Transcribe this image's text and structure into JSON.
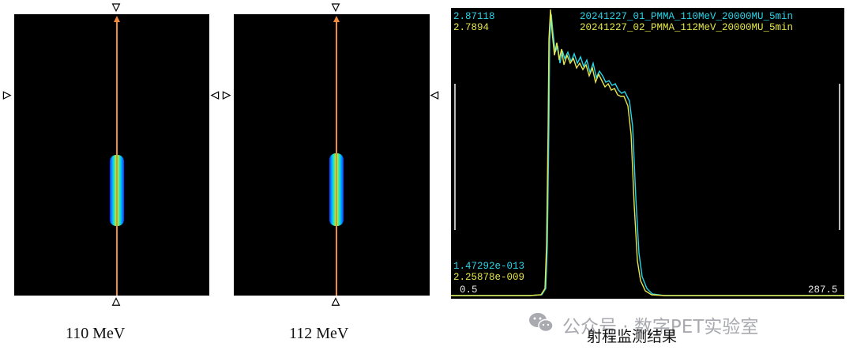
{
  "images": [
    {
      "caption": "110 MeV"
    },
    {
      "caption": "112 MeV"
    }
  ],
  "plot": {
    "top_value_1": "2.87118",
    "top_value_2": "2.7894",
    "legend_1": "20241227_01_PMMA_110MeV_20000MU_5min",
    "legend_2": "20241227_02_PMMA_112MeV_20000MU_5min",
    "bottom_value_1": "1.47292e-013",
    "bottom_value_2": "2.25878e-009",
    "x_min": "0.5",
    "x_max": "287.5",
    "caption": "射程监测结果",
    "colors": {
      "series_1": "#2ad4e8",
      "series_2": "#e5e64a"
    }
  },
  "watermark": "公众号 · 数字PET实验室",
  "icons": {
    "marker_down": "▽",
    "marker_up": "△",
    "marker_left": "◁",
    "marker_right": "▷"
  }
}
